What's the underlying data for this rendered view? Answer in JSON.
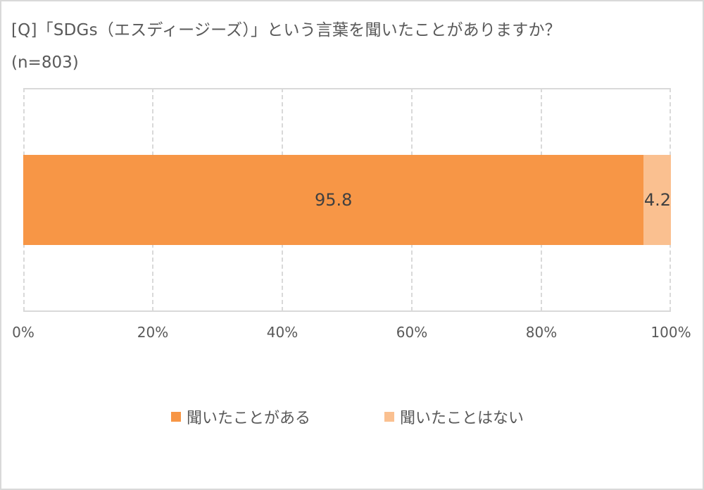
{
  "chart_data": {
    "type": "bar",
    "orientation": "horizontal",
    "stacked": true,
    "percent_stacked": true,
    "title": "[Q]「SDGs（エスディージーズ）」という言葉を聞いたことがありますか？",
    "subtitle": "(n=803)",
    "categories": [
      ""
    ],
    "series": [
      {
        "name": "聞いたことがある",
        "values": [
          95.8
        ],
        "color": "#F79646"
      },
      {
        "name": "聞いたことはない",
        "values": [
          4.2
        ],
        "color": "#FAC090"
      }
    ],
    "xlabel": "",
    "ylabel": "",
    "xlim": [
      0,
      100
    ],
    "x_ticks": [
      "0%",
      "20%",
      "40%",
      "60%",
      "80%",
      "100%"
    ],
    "grid": true,
    "legend_position": "bottom",
    "data_labels": [
      "95.8",
      "4.2"
    ]
  },
  "header": {
    "title": "[Q]「SDGs（エスディージーズ）」という言葉を聞いたことがありますか？",
    "subtitle": "(n=803)"
  },
  "axis": {
    "ticks": [
      "0%",
      "20%",
      "40%",
      "60%",
      "80%",
      "100%"
    ]
  },
  "bar": {
    "segments": [
      {
        "label": "95.8",
        "value": 95.8,
        "color": "#F79646"
      },
      {
        "label": "4.2",
        "value": 4.2,
        "color": "#FAC090"
      }
    ]
  },
  "legend": {
    "items": [
      {
        "label": "聞いたことがある",
        "color": "#F79646"
      },
      {
        "label": "聞いたことはない",
        "color": "#FAC090"
      }
    ]
  }
}
